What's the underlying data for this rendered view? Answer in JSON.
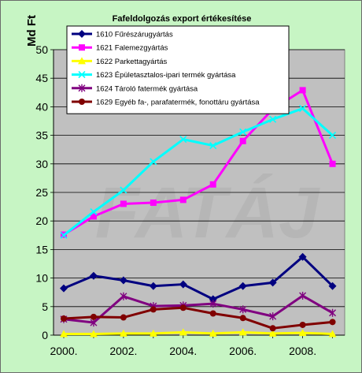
{
  "chart_data": {
    "type": "line",
    "title": "Fafeldolgozás export értékesítése",
    "ylabel": "Md Ft",
    "xlabel": "",
    "x": [
      2000,
      2001,
      2002,
      2003,
      2004,
      2005,
      2006,
      2007,
      2008,
      2009
    ],
    "xtick_labels": [
      "2000.",
      "2002.",
      "2004.",
      "2006.",
      "2008."
    ],
    "xtick_values": [
      2000,
      2002,
      2004,
      2006,
      2008
    ],
    "ylim": [
      0,
      50
    ],
    "yticks": [
      0,
      5,
      10,
      15,
      20,
      25,
      30,
      35,
      40,
      45,
      50
    ],
    "grid": "horizontal",
    "background_color": "#c0c0c0",
    "outer_background_color": "#c7f5c4",
    "legend_position": "top-left inside plot",
    "watermark_text": "FATÁJ",
    "series": [
      {
        "name": "1610  Fűrészárugyártás",
        "color": "#000080",
        "marker": "diamond",
        "values": [
          8.2,
          10.4,
          9.6,
          8.6,
          8.9,
          6.3,
          8.6,
          9.2,
          13.7,
          8.6
        ]
      },
      {
        "name": "1621  Falemezgyártás",
        "color": "#ff00ff",
        "marker": "square",
        "values": [
          17.6,
          20.8,
          23.0,
          23.2,
          23.7,
          26.4,
          34.0,
          39.6,
          42.9,
          30.0
        ]
      },
      {
        "name": "1622  Parkettagyártás",
        "color": "#ffff00",
        "marker": "triangle",
        "values": [
          0.2,
          0.2,
          0.3,
          0.3,
          0.5,
          0.3,
          0.5,
          0.3,
          0.4,
          0.2
        ]
      },
      {
        "name": "1623  Épületasztalos-ipari termék gyártása",
        "color": "#00ffff",
        "marker": "x",
        "values": [
          17.5,
          21.6,
          25.4,
          30.4,
          34.3,
          33.2,
          35.6,
          37.8,
          39.7,
          35.0
        ]
      },
      {
        "name": "1624  Tároló fatermék gyártása",
        "color": "#800080",
        "marker": "star",
        "values": [
          2.8,
          2.2,
          6.8,
          5.1,
          5.2,
          5.5,
          4.5,
          3.3,
          6.9,
          3.9
        ]
      },
      {
        "name": "1629  Egyéb fa-, parafatermék, fonottáru gyártása",
        "color": "#800000",
        "marker": "circle",
        "values": [
          2.9,
          3.2,
          3.1,
          4.5,
          4.8,
          3.8,
          3.0,
          1.2,
          1.8,
          2.3
        ]
      }
    ]
  }
}
